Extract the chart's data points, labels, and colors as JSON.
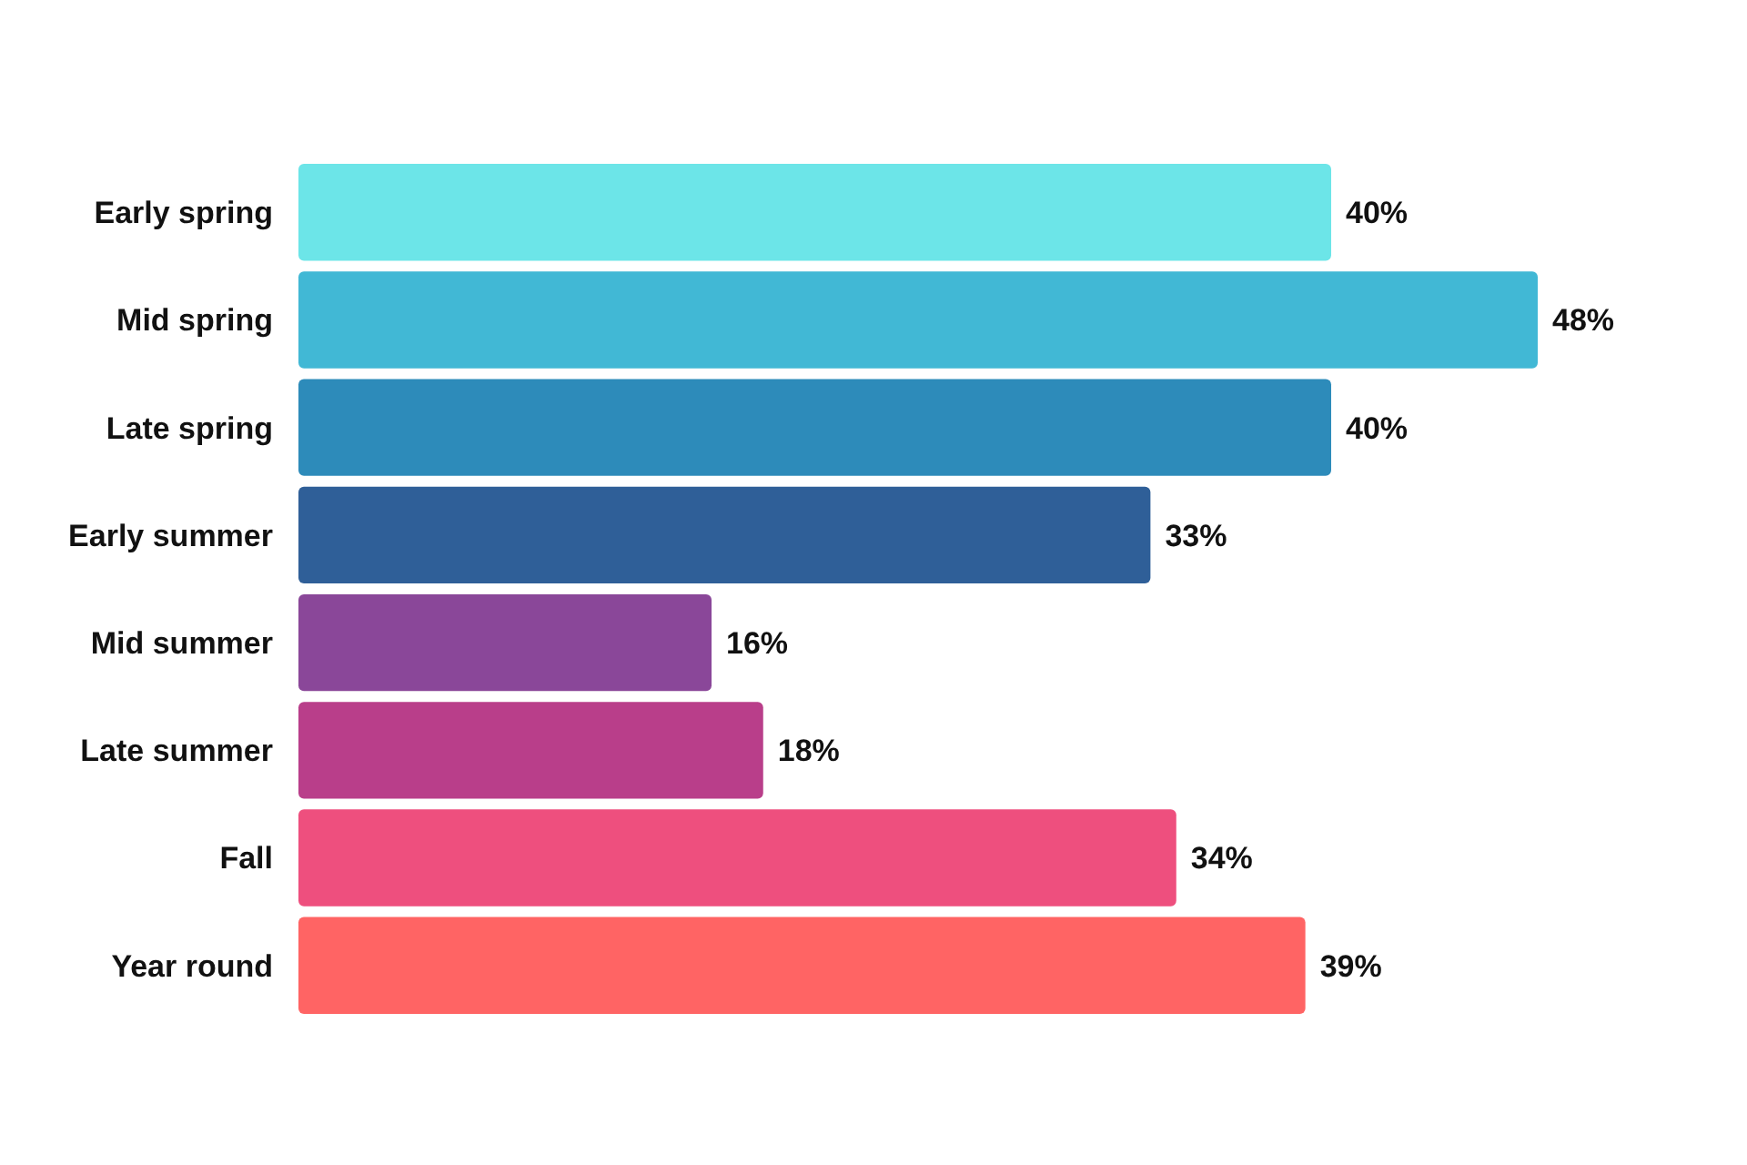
{
  "chart_data": {
    "type": "bar",
    "orientation": "horizontal",
    "categories": [
      "Early spring",
      "Mid spring",
      "Late spring",
      "Early summer",
      "Mid summer",
      "Late summer",
      "Fall",
      "Year round"
    ],
    "values": [
      40,
      48,
      40,
      33,
      16,
      18,
      34,
      39
    ],
    "colors": [
      "#6ce5e8",
      "#41b8d5",
      "#2d8bba",
      "#2f5f98",
      "#8a4799",
      "#b93e8a",
      "#ee4f7e",
      "#ff6464"
    ],
    "value_labels": [
      "40%",
      "48%",
      "40%",
      "33%",
      "16%",
      "18%",
      "34%",
      "39%"
    ]
  }
}
